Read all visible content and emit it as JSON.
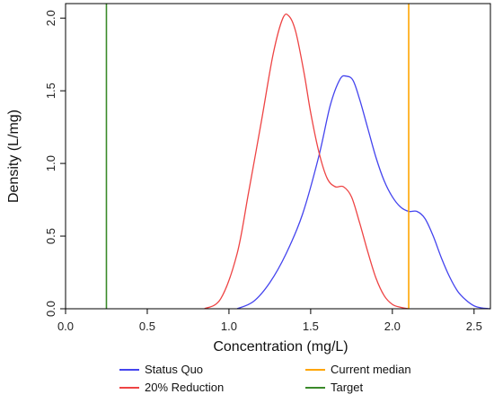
{
  "chart_data": {
    "type": "line",
    "xlabel": "Concentration (mg/L)",
    "ylabel": "Density (L/mg)",
    "xlim": [
      0.0,
      2.6
    ],
    "ylim": [
      0.0,
      2.1
    ],
    "x_ticks": [
      0.0,
      0.5,
      1.0,
      1.5,
      2.0,
      2.5
    ],
    "x_tick_labels": [
      "0.0",
      "0.5",
      "1.0",
      "1.5",
      "2.0",
      "2.5"
    ],
    "y_ticks": [
      0.0,
      0.5,
      1.0,
      1.5,
      2.0
    ],
    "y_tick_labels": [
      "0.0",
      "0.5",
      "1.0",
      "1.5",
      "2.0"
    ],
    "grid": false,
    "legend_position": "bottom",
    "series": [
      {
        "name": "Status Quo",
        "color": "#4444ee",
        "x": [
          1.05,
          1.15,
          1.25,
          1.35,
          1.45,
          1.55,
          1.62,
          1.68,
          1.72,
          1.76,
          1.8,
          1.85,
          1.9,
          1.95,
          2.0,
          2.05,
          2.1,
          2.15,
          2.2,
          2.25,
          2.3,
          2.35,
          2.4,
          2.45,
          2.5,
          2.55,
          2.6
        ],
        "y": [
          0.0,
          0.05,
          0.18,
          0.38,
          0.65,
          1.05,
          1.4,
          1.58,
          1.6,
          1.57,
          1.44,
          1.24,
          1.04,
          0.88,
          0.77,
          0.7,
          0.67,
          0.67,
          0.62,
          0.5,
          0.35,
          0.22,
          0.12,
          0.06,
          0.02,
          0.005,
          0.0
        ]
      },
      {
        "name": "20% Reduction",
        "color": "#ee4444",
        "x": [
          0.85,
          0.95,
          1.05,
          1.12,
          1.2,
          1.27,
          1.33,
          1.37,
          1.41,
          1.46,
          1.5,
          1.55,
          1.6,
          1.65,
          1.7,
          1.75,
          1.8,
          1.85,
          1.9,
          1.95,
          2.0,
          2.05,
          2.1
        ],
        "y": [
          0.0,
          0.07,
          0.38,
          0.8,
          1.3,
          1.75,
          2.0,
          2.01,
          1.9,
          1.62,
          1.35,
          1.08,
          0.9,
          0.84,
          0.84,
          0.77,
          0.59,
          0.39,
          0.21,
          0.09,
          0.03,
          0.01,
          0.0
        ]
      }
    ],
    "vertical_lines": [
      {
        "name": "Current median",
        "x": 2.1,
        "color": "#ffa500"
      },
      {
        "name": "Target",
        "x": 0.25,
        "color": "#3a8a2a"
      }
    ]
  }
}
